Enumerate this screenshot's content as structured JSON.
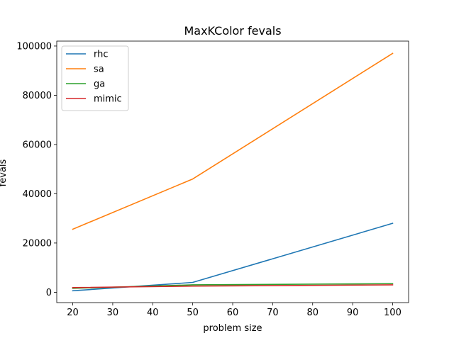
{
  "chart_data": {
    "type": "line",
    "title": "MaxKColor fevals",
    "xlabel": "problem size",
    "ylabel": "fevals",
    "x": [
      20,
      50,
      100
    ],
    "xlim": [
      16,
      104
    ],
    "ylim": [
      -4200,
      102000
    ],
    "xticks": [
      20,
      30,
      40,
      50,
      60,
      70,
      80,
      90,
      100
    ],
    "yticks": [
      0,
      20000,
      40000,
      60000,
      80000,
      100000
    ],
    "grid": false,
    "legend_position": "top-left",
    "series": [
      {
        "name": "rhc",
        "color": "#1f77b4",
        "values": [
          600,
          4000,
          28000
        ]
      },
      {
        "name": "sa",
        "color": "#ff7f0e",
        "values": [
          25600,
          46000,
          97000
        ]
      },
      {
        "name": "ga",
        "color": "#2ca02c",
        "values": [
          1600,
          3000,
          3500
        ]
      },
      {
        "name": "mimic",
        "color": "#d62728",
        "values": [
          1900,
          2500,
          3000
        ]
      }
    ]
  }
}
